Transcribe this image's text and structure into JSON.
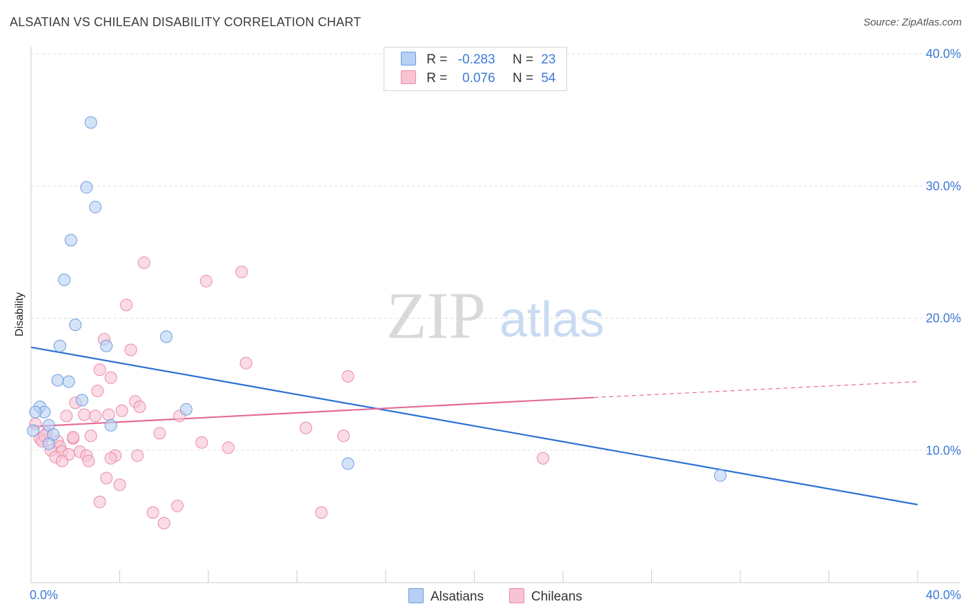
{
  "header": {
    "title": "ALSATIAN VS CHILEAN DISABILITY CORRELATION CHART",
    "source": "Source: ZipAtlas.com"
  },
  "watermark": {
    "zip": "ZIP",
    "atlas": "atlas"
  },
  "legend": {
    "rows": [
      {
        "r_label": "R =",
        "r_value": "-0.283",
        "n_label": "N =",
        "n_value": "23"
      },
      {
        "r_label": "R =",
        "r_value": "0.076",
        "n_label": "N =",
        "n_value": "54"
      }
    ]
  },
  "bottom_legend": {
    "alsatians": "Alsatians",
    "chileans": "Chileans"
  },
  "colors": {
    "alsatian_fill": "#b7d0f3",
    "alsatian_stroke": "#6e9be0",
    "alsatian_line": "#2a6fd4",
    "chilean_fill": "#f8c3d3",
    "chilean_stroke": "#ea8aa8",
    "chilean_line": "#e56b93",
    "axis_text": "#3d7ad6"
  },
  "chart_data": {
    "type": "scatter",
    "title": "ALSATIAN VS CHILEAN DISABILITY CORRELATION CHART",
    "ylabel": "Disability",
    "xlabel": "",
    "xlim": [
      0,
      40
    ],
    "ylim": [
      0,
      40
    ],
    "x_ticks": [
      "0.0%",
      "40.0%"
    ],
    "y_ticks": [
      "10.0%",
      "20.0%",
      "30.0%",
      "40.0%"
    ],
    "y_tick_values": [
      10,
      20,
      30,
      40
    ],
    "grid": "dashed horizontal",
    "legend_position": "top-center",
    "series": [
      {
        "name": "Alsatians",
        "R": -0.283,
        "N": 23,
        "trend": {
          "x": [
            0,
            40
          ],
          "y": [
            17.8,
            5.9
          ]
        },
        "points": [
          {
            "x": 2.7,
            "y": 34.8
          },
          {
            "x": 2.5,
            "y": 29.9
          },
          {
            "x": 2.9,
            "y": 28.4
          },
          {
            "x": 1.8,
            "y": 25.9
          },
          {
            "x": 1.5,
            "y": 22.9
          },
          {
            "x": 2.0,
            "y": 19.5
          },
          {
            "x": 6.1,
            "y": 18.6
          },
          {
            "x": 1.3,
            "y": 17.9
          },
          {
            "x": 3.4,
            "y": 17.9
          },
          {
            "x": 1.2,
            "y": 15.3
          },
          {
            "x": 1.7,
            "y": 15.2
          },
          {
            "x": 2.3,
            "y": 13.8
          },
          {
            "x": 0.4,
            "y": 13.3
          },
          {
            "x": 0.6,
            "y": 12.9
          },
          {
            "x": 7.0,
            "y": 13.1
          },
          {
            "x": 0.2,
            "y": 12.9
          },
          {
            "x": 0.8,
            "y": 11.9
          },
          {
            "x": 3.6,
            "y": 11.9
          },
          {
            "x": 1.0,
            "y": 11.2
          },
          {
            "x": 0.1,
            "y": 11.5
          },
          {
            "x": 0.8,
            "y": 10.5
          },
          {
            "x": 14.3,
            "y": 9.0
          },
          {
            "x": 31.1,
            "y": 8.1
          }
        ]
      },
      {
        "name": "Chileans",
        "R": 0.076,
        "N": 54,
        "trend": {
          "x": [
            0,
            25.4,
            40
          ],
          "y": [
            11.8,
            14.0,
            15.2
          ]
        },
        "points": [
          {
            "x": 5.1,
            "y": 24.2
          },
          {
            "x": 9.5,
            "y": 23.5
          },
          {
            "x": 7.9,
            "y": 22.8
          },
          {
            "x": 4.3,
            "y": 21.0
          },
          {
            "x": 3.3,
            "y": 18.4
          },
          {
            "x": 4.5,
            "y": 17.6
          },
          {
            "x": 9.7,
            "y": 16.6
          },
          {
            "x": 3.1,
            "y": 16.1
          },
          {
            "x": 14.3,
            "y": 15.6
          },
          {
            "x": 3.6,
            "y": 15.5
          },
          {
            "x": 3.0,
            "y": 14.5
          },
          {
            "x": 4.7,
            "y": 13.7
          },
          {
            "x": 2.0,
            "y": 13.6
          },
          {
            "x": 4.9,
            "y": 13.3
          },
          {
            "x": 4.1,
            "y": 13.0
          },
          {
            "x": 2.4,
            "y": 12.7
          },
          {
            "x": 3.5,
            "y": 12.7
          },
          {
            "x": 1.6,
            "y": 12.6
          },
          {
            "x": 6.7,
            "y": 12.6
          },
          {
            "x": 2.9,
            "y": 12.6
          },
          {
            "x": 0.2,
            "y": 12.0
          },
          {
            "x": 12.4,
            "y": 11.7
          },
          {
            "x": 5.8,
            "y": 11.3
          },
          {
            "x": 0.7,
            "y": 11.3
          },
          {
            "x": 2.7,
            "y": 11.1
          },
          {
            "x": 14.1,
            "y": 11.1
          },
          {
            "x": 0.4,
            "y": 10.9
          },
          {
            "x": 1.9,
            "y": 10.9
          },
          {
            "x": 0.5,
            "y": 10.7
          },
          {
            "x": 1.2,
            "y": 10.7
          },
          {
            "x": 7.7,
            "y": 10.6
          },
          {
            "x": 1.3,
            "y": 10.3
          },
          {
            "x": 8.9,
            "y": 10.2
          },
          {
            "x": 0.9,
            "y": 10.0
          },
          {
            "x": 1.4,
            "y": 9.9
          },
          {
            "x": 2.2,
            "y": 9.9
          },
          {
            "x": 1.7,
            "y": 9.7
          },
          {
            "x": 2.5,
            "y": 9.6
          },
          {
            "x": 3.8,
            "y": 9.6
          },
          {
            "x": 4.8,
            "y": 9.6
          },
          {
            "x": 1.1,
            "y": 9.5
          },
          {
            "x": 3.6,
            "y": 9.4
          },
          {
            "x": 23.1,
            "y": 9.4
          },
          {
            "x": 1.4,
            "y": 9.2
          },
          {
            "x": 2.6,
            "y": 9.2
          },
          {
            "x": 3.4,
            "y": 7.9
          },
          {
            "x": 4.0,
            "y": 7.4
          },
          {
            "x": 3.1,
            "y": 6.1
          },
          {
            "x": 6.6,
            "y": 5.8
          },
          {
            "x": 5.5,
            "y": 5.3
          },
          {
            "x": 13.1,
            "y": 5.3
          },
          {
            "x": 6.0,
            "y": 4.5
          },
          {
            "x": 0.6,
            "y": 11.1
          },
          {
            "x": 1.9,
            "y": 11.0
          }
        ]
      }
    ]
  }
}
